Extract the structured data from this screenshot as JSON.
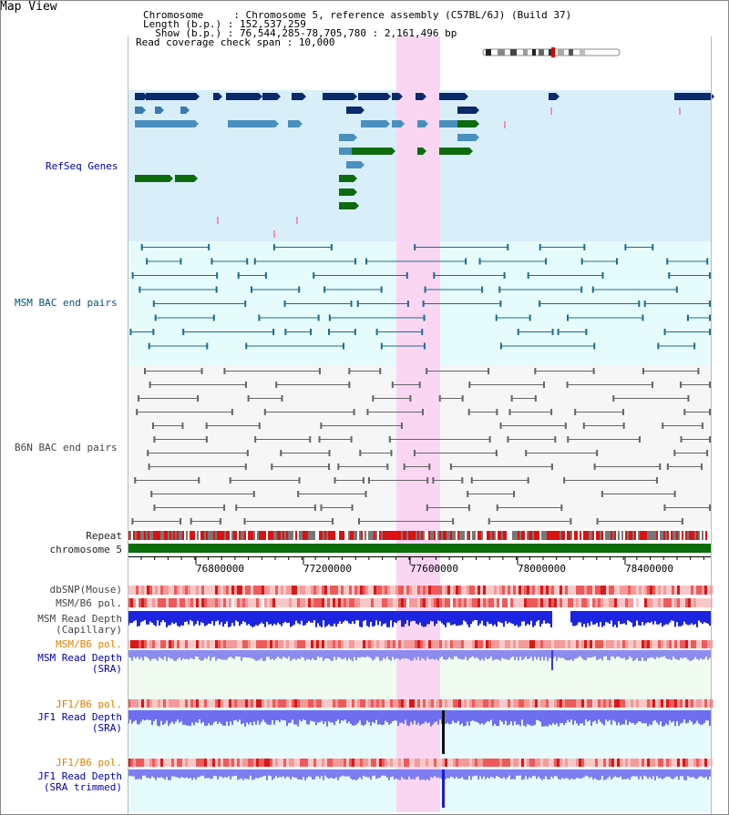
{
  "header": {
    "title": "Map View",
    "chromosome_key": "Chromosome     : ",
    "chromosome_val": "Chromosome 5, reference assembly (C57BL/6J) (Build 37)",
    "length_key": "Length (b.p.) : ",
    "length_val": "152,537,259",
    "show_key": "  Show (b.p.) : ",
    "show_val": "76,544,285-78,705,780 : 2,161,496 bp",
    "coverage_key": "Read coverage check span : ",
    "coverage_val": "10,000"
  },
  "tracks": {
    "refseq": "RefSeq Genes",
    "msm_bac": "MSM BAC end pairs",
    "b6n_bac": "B6N BAC end pairs",
    "repeat": "Repeat",
    "chromosome": "chromosome 5",
    "dbsnp": "dbSNP(Mouse)",
    "msm_b6_pol": "MSM/B6 pol.",
    "msm_depth_cap_1": "MSM Read Depth",
    "msm_depth_cap_2": "(Capillary)",
    "msm_b6_pol_2": "MSM/B6 pol.",
    "msm_depth_sra_1": "MSM Read Depth",
    "msm_depth_sra_2": "(SRA)",
    "jf1_pol": "JF1/B6 pol.",
    "jf1_depth_1": "JF1 Read Depth",
    "jf1_depth_2": "(SRA)",
    "jf1_pol_2": "JF1/B6 pol.",
    "jf1_trim_1": "JF1 Read Depth",
    "jf1_trim_2": "(SRA trimmed)"
  },
  "axis": {
    "ticks": [
      "76800000",
      "77200000",
      "77600000",
      "78000000",
      "78400000"
    ]
  },
  "colors": {
    "refseq_bg": "#d8effa",
    "msm_bg": "#e6fbfb",
    "b6n_bg": "#f4f4f4",
    "highlight": "#fbd6f3",
    "chromosome": "#0a6e0a",
    "depth_dark": "#1a22e6",
    "depth_light": "#8c8cf0"
  }
}
